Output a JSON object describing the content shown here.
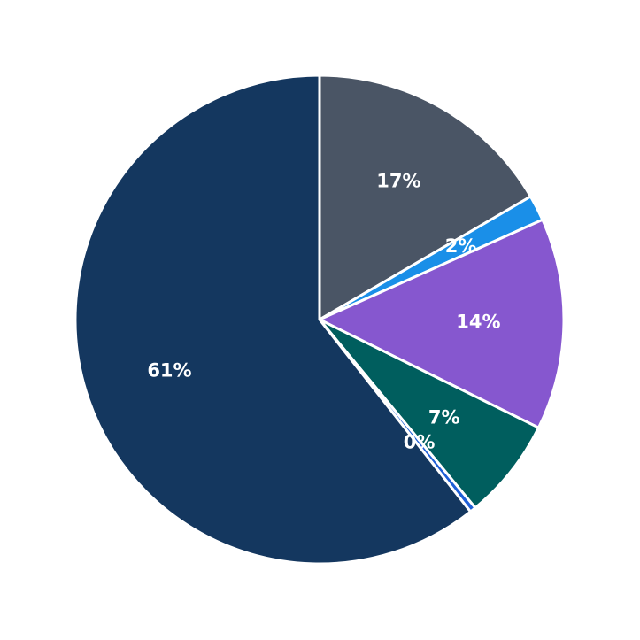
{
  "chart_data": {
    "type": "pie",
    "categories": [
      null,
      null,
      null,
      null,
      null,
      null
    ],
    "values": [
      16.6,
      1.7,
      14,
      6.7,
      0.4,
      60.6
    ],
    "value_labels": [
      "17%",
      "2%",
      "14%",
      "7%",
      "0%",
      "61%"
    ],
    "colors": [
      "#4a5565",
      "#1a8fe8",
      "#8657cf",
      "#005e5e",
      "#1f5fd6",
      "#14375f"
    ]
  }
}
